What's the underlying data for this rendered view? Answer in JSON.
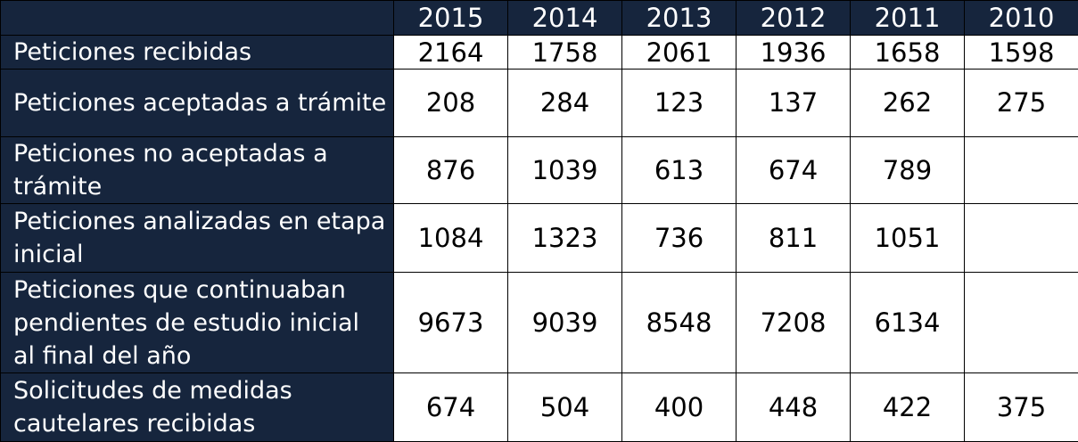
{
  "chart_data": {
    "type": "table",
    "columns": [
      "2015",
      "2014",
      "2013",
      "2012",
      "2011",
      "2010"
    ],
    "rows": [
      {
        "label": "Peticiones recibidas",
        "values": [
          "2164",
          "1758",
          "2061",
          "1936",
          "1658",
          "1598"
        ]
      },
      {
        "label": "Peticiones aceptadas a trámite",
        "values": [
          "208",
          "284",
          "123",
          "137",
          "262",
          "275"
        ]
      },
      {
        "label": "Peticiones no aceptadas a trámite",
        "values": [
          "876",
          "1039",
          "613",
          "674",
          "789",
          ""
        ]
      },
      {
        "label": "Peticiones analizadas en etapa inicial",
        "values": [
          "1084",
          "1323",
          "736",
          "811",
          "1051",
          ""
        ]
      },
      {
        "label": "Peticiones que continuaban pendientes de estudio inicial al final del año",
        "values": [
          "9673",
          "9039",
          "8548",
          "7208",
          "6134",
          ""
        ]
      },
      {
        "label": "Solicitudes de medidas cautelares recibidas",
        "values": [
          "674",
          "504",
          "400",
          "448",
          "422",
          "375"
        ]
      }
    ]
  },
  "colors": {
    "header_background": "#16253d",
    "header_text": "#ffffff",
    "cell_background": "#ffffff",
    "cell_text": "#000000",
    "border": "#000000"
  }
}
